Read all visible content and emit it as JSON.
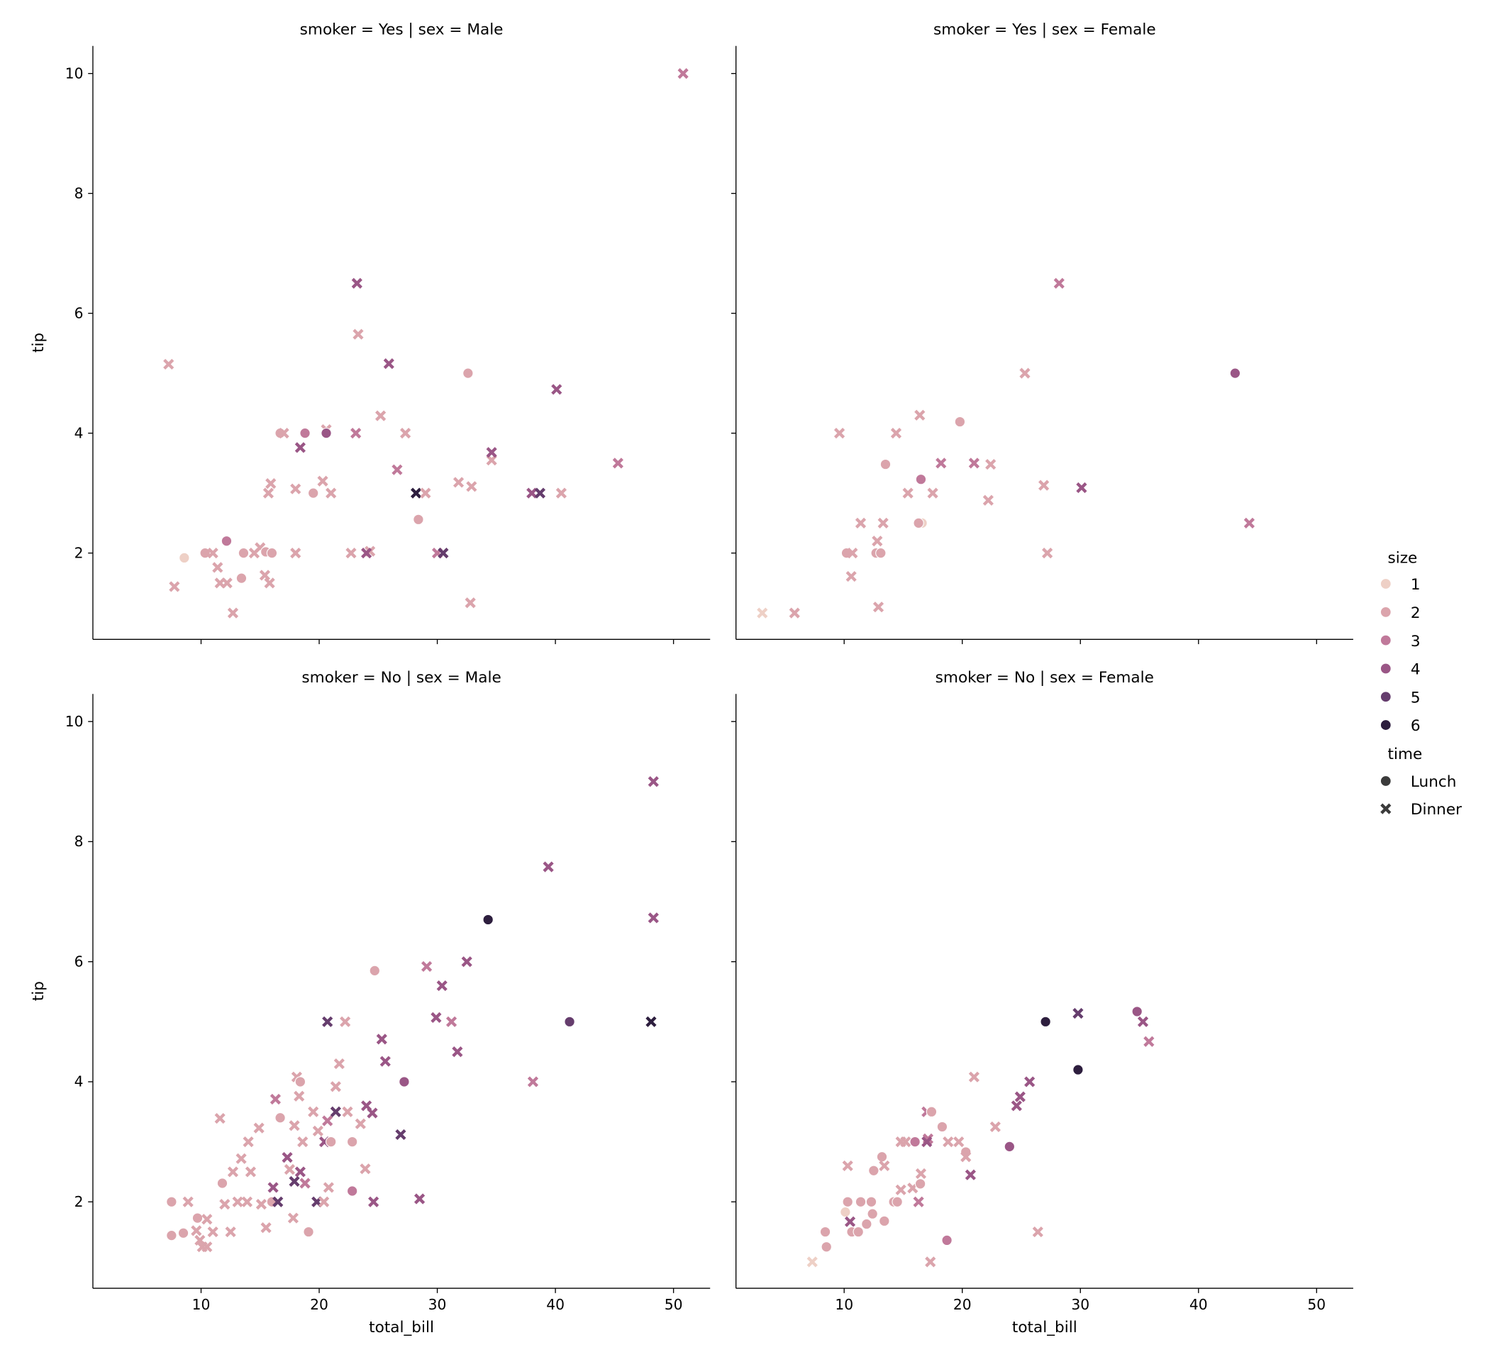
{
  "chart_data": [
    {
      "type": "scatter",
      "title": "smoker = Yes | sex = Male",
      "xlabel": "",
      "ylabel": "tip",
      "points": [
        [
          50.81,
          10.0,
          3,
          "D"
        ],
        [
          7.25,
          5.15,
          2,
          "D"
        ],
        [
          8.58,
          1.92,
          1,
          "L"
        ],
        [
          7.74,
          1.44,
          2,
          "D"
        ],
        [
          10.34,
          2.0,
          2,
          "L"
        ],
        [
          11.0,
          2.0,
          2,
          "D"
        ],
        [
          11.4,
          1.76,
          2,
          "D"
        ],
        [
          11.6,
          1.5,
          2,
          "D"
        ],
        [
          12.2,
          1.5,
          2,
          "D"
        ],
        [
          12.16,
          2.2,
          3,
          "L"
        ],
        [
          12.7,
          1.0,
          2,
          "D"
        ],
        [
          13.42,
          1.58,
          2,
          "L"
        ],
        [
          13.6,
          2.0,
          2,
          "L"
        ],
        [
          14.5,
          2.0,
          2,
          "D"
        ],
        [
          15.0,
          2.09,
          2,
          "D"
        ],
        [
          15.4,
          1.63,
          2,
          "D"
        ],
        [
          15.48,
          2.02,
          2,
          "L"
        ],
        [
          16.0,
          2.0,
          2,
          "L"
        ],
        [
          15.7,
          3.0,
          2,
          "D"
        ],
        [
          15.9,
          3.16,
          2,
          "D"
        ],
        [
          15.8,
          1.5,
          2,
          "D"
        ],
        [
          16.7,
          4.0,
          2,
          "L"
        ],
        [
          17.0,
          4.0,
          2,
          "D"
        ],
        [
          18.0,
          2.0,
          2,
          "D"
        ],
        [
          18.0,
          3.07,
          2,
          "D"
        ],
        [
          18.4,
          3.76,
          4,
          "D"
        ],
        [
          18.8,
          4.0,
          3,
          "L"
        ],
        [
          19.5,
          3.0,
          2,
          "L"
        ],
        [
          20.3,
          3.2,
          2,
          "D"
        ],
        [
          20.6,
          4.06,
          2,
          "D"
        ],
        [
          20.6,
          4.0,
          4,
          "L"
        ],
        [
          21.0,
          3.0,
          2,
          "D"
        ],
        [
          22.7,
          2.0,
          2,
          "D"
        ],
        [
          23.1,
          4.0,
          3,
          "D"
        ],
        [
          23.2,
          6.5,
          4,
          "D"
        ],
        [
          23.3,
          5.65,
          2,
          "D"
        ],
        [
          24.3,
          2.03,
          2,
          "D"
        ],
        [
          24.0,
          2.0,
          4,
          "D"
        ],
        [
          25.2,
          4.29,
          2,
          "D"
        ],
        [
          25.9,
          5.16,
          4,
          "D"
        ],
        [
          26.6,
          3.39,
          3,
          "D"
        ],
        [
          27.3,
          4.0,
          2,
          "D"
        ],
        [
          28.2,
          3.0,
          6,
          "D"
        ],
        [
          28.4,
          2.56,
          2,
          "L"
        ],
        [
          29.0,
          3.0,
          2,
          "D"
        ],
        [
          30.0,
          2.0,
          3,
          "D"
        ],
        [
          30.5,
          2.0,
          5,
          "D"
        ],
        [
          31.8,
          3.18,
          2,
          "D"
        ],
        [
          32.6,
          5.0,
          2,
          "L"
        ],
        [
          32.8,
          1.17,
          2,
          "D"
        ],
        [
          32.9,
          3.11,
          2,
          "D"
        ],
        [
          34.6,
          3.55,
          2,
          "D"
        ],
        [
          34.6,
          3.68,
          4,
          "D"
        ],
        [
          38.0,
          3.0,
          4,
          "D"
        ],
        [
          38.7,
          3.0,
          5,
          "D"
        ],
        [
          40.1,
          4.73,
          4,
          "D"
        ],
        [
          40.5,
          3.0,
          2,
          "D"
        ],
        [
          45.3,
          3.5,
          3,
          "D"
        ]
      ]
    },
    {
      "type": "scatter",
      "title": "smoker = Yes | sex = Female",
      "xlabel": "",
      "ylabel": "",
      "points": [
        [
          3.07,
          1.0,
          1,
          "D"
        ],
        [
          5.8,
          1.0,
          2,
          "D"
        ],
        [
          9.6,
          4.0,
          2,
          "D"
        ],
        [
          10.2,
          2.0,
          2,
          "L"
        ],
        [
          10.7,
          2.0,
          2,
          "D"
        ],
        [
          10.6,
          1.61,
          2,
          "D"
        ],
        [
          11.4,
          2.5,
          2,
          "D"
        ],
        [
          12.8,
          2.2,
          2,
          "D"
        ],
        [
          12.7,
          2.0,
          2,
          "L"
        ],
        [
          13.1,
          2.0,
          2,
          "L"
        ],
        [
          12.9,
          1.1,
          2,
          "D"
        ],
        [
          13.3,
          2.5,
          2,
          "D"
        ],
        [
          13.5,
          3.48,
          2,
          "L"
        ],
        [
          14.4,
          4.0,
          2,
          "D"
        ],
        [
          15.4,
          3.0,
          2,
          "D"
        ],
        [
          16.4,
          4.3,
          2,
          "D"
        ],
        [
          16.6,
          2.5,
          1,
          "L"
        ],
        [
          16.3,
          2.5,
          2,
          "L"
        ],
        [
          16.5,
          3.23,
          3,
          "L"
        ],
        [
          17.5,
          3.0,
          2,
          "D"
        ],
        [
          18.2,
          3.5,
          3,
          "D"
        ],
        [
          19.8,
          4.19,
          2,
          "L"
        ],
        [
          21.0,
          3.5,
          3,
          "D"
        ],
        [
          22.2,
          2.88,
          2,
          "D"
        ],
        [
          22.4,
          3.48,
          2,
          "D"
        ],
        [
          25.3,
          5.0,
          2,
          "D"
        ],
        [
          26.9,
          3.13,
          2,
          "D"
        ],
        [
          27.2,
          2.0,
          2,
          "D"
        ],
        [
          28.2,
          6.5,
          3,
          "D"
        ],
        [
          30.1,
          3.09,
          4,
          "D"
        ],
        [
          43.1,
          5.0,
          4,
          "L"
        ],
        [
          44.3,
          2.5,
          3,
          "D"
        ]
      ]
    },
    {
      "type": "scatter",
      "title": "smoker = No | sex = Male",
      "xlabel": "total_bill",
      "ylabel": "tip",
      "points": [
        [
          7.5,
          2.0,
          2,
          "L"
        ],
        [
          7.5,
          1.44,
          2,
          "L"
        ],
        [
          8.5,
          1.48,
          2,
          "L"
        ],
        [
          8.9,
          2.0,
          2,
          "D"
        ],
        [
          9.7,
          1.73,
          2,
          "L"
        ],
        [
          9.6,
          1.52,
          2,
          "D"
        ],
        [
          9.9,
          1.36,
          2,
          "D"
        ],
        [
          10.1,
          1.25,
          2,
          "D"
        ],
        [
          10.5,
          1.25,
          2,
          "D"
        ],
        [
          10.5,
          1.71,
          2,
          "D"
        ],
        [
          11.0,
          1.5,
          2,
          "D"
        ],
        [
          11.6,
          3.39,
          2,
          "D"
        ],
        [
          11.8,
          2.31,
          2,
          "L"
        ],
        [
          12.0,
          1.96,
          2,
          "D"
        ],
        [
          12.5,
          1.5,
          2,
          "D"
        ],
        [
          12.7,
          2.5,
          2,
          "D"
        ],
        [
          13.1,
          2.0,
          2,
          "D"
        ],
        [
          13.4,
          2.72,
          2,
          "D"
        ],
        [
          13.9,
          2.0,
          2,
          "D"
        ],
        [
          14.0,
          3.0,
          2,
          "D"
        ],
        [
          14.2,
          2.5,
          2,
          "D"
        ],
        [
          14.9,
          3.23,
          2,
          "D"
        ],
        [
          15.1,
          1.96,
          2,
          "D"
        ],
        [
          15.5,
          1.57,
          2,
          "D"
        ],
        [
          16.1,
          2.24,
          4,
          "D"
        ],
        [
          16.0,
          2.0,
          2,
          "L"
        ],
        [
          16.3,
          3.71,
          3,
          "D"
        ],
        [
          16.5,
          2.0,
          5,
          "D"
        ],
        [
          16.7,
          3.4,
          2,
          "L"
        ],
        [
          17.3,
          2.74,
          4,
          "D"
        ],
        [
          17.5,
          2.54,
          2,
          "D"
        ],
        [
          17.8,
          1.73,
          2,
          "D"
        ],
        [
          17.9,
          3.27,
          2,
          "D"
        ],
        [
          17.9,
          2.34,
          5,
          "D"
        ],
        [
          18.1,
          4.08,
          2,
          "D"
        ],
        [
          18.3,
          3.76,
          2,
          "D"
        ],
        [
          18.4,
          4.0,
          2,
          "L"
        ],
        [
          18.4,
          2.5,
          4,
          "D"
        ],
        [
          18.6,
          3.0,
          2,
          "D"
        ],
        [
          18.8,
          2.31,
          3,
          "D"
        ],
        [
          19.1,
          1.5,
          2,
          "L"
        ],
        [
          19.5,
          3.5,
          2,
          "D"
        ],
        [
          19.8,
          2.0,
          5,
          "D"
        ],
        [
          19.9,
          3.18,
          2,
          "D"
        ],
        [
          20.4,
          2.0,
          2,
          "D"
        ],
        [
          20.45,
          3.0,
          4,
          "D"
        ],
        [
          20.7,
          5.0,
          5,
          "D"
        ],
        [
          20.7,
          3.35,
          3,
          "D"
        ],
        [
          20.8,
          2.24,
          2,
          "D"
        ],
        [
          21.0,
          3.0,
          2,
          "L"
        ],
        [
          21.4,
          3.5,
          5,
          "D"
        ],
        [
          21.4,
          3.92,
          2,
          "D"
        ],
        [
          21.7,
          4.3,
          2,
          "D"
        ],
        [
          22.2,
          5.0,
          2,
          "D"
        ],
        [
          22.4,
          3.5,
          2,
          "D"
        ],
        [
          22.8,
          3.0,
          2,
          "L"
        ],
        [
          22.8,
          2.18,
          3,
          "L"
        ],
        [
          23.5,
          3.3,
          2,
          "D"
        ],
        [
          23.9,
          2.55,
          2,
          "D"
        ],
        [
          24.0,
          3.6,
          4,
          "D"
        ],
        [
          24.5,
          3.48,
          4,
          "D"
        ],
        [
          24.6,
          2.0,
          4,
          "D"
        ],
        [
          24.7,
          5.85,
          2,
          "L"
        ],
        [
          25.3,
          4.71,
          4,
          "D"
        ],
        [
          25.6,
          4.34,
          4,
          "D"
        ],
        [
          26.9,
          3.12,
          5,
          "D"
        ],
        [
          27.2,
          4.0,
          4,
          "L"
        ],
        [
          28.5,
          2.05,
          4,
          "D"
        ],
        [
          29.1,
          5.92,
          3,
          "D"
        ],
        [
          29.9,
          5.07,
          4,
          "D"
        ],
        [
          30.4,
          5.6,
          4,
          "D"
        ],
        [
          31.2,
          5.0,
          3,
          "D"
        ],
        [
          31.7,
          4.5,
          4,
          "D"
        ],
        [
          32.5,
          6.0,
          4,
          "D"
        ],
        [
          34.3,
          6.7,
          6,
          "L"
        ],
        [
          38.1,
          4.0,
          3,
          "D"
        ],
        [
          39.4,
          7.58,
          4,
          "D"
        ],
        [
          41.2,
          5.0,
          5,
          "L"
        ],
        [
          48.1,
          5.0,
          6,
          "D"
        ],
        [
          48.3,
          9.0,
          4,
          "D"
        ],
        [
          48.3,
          6.73,
          4,
          "D"
        ]
      ]
    },
    {
      "type": "scatter",
      "title": "smoker = No | sex = Female",
      "xlabel": "total_bill",
      "ylabel": "",
      "points": [
        [
          7.3,
          1.0,
          1,
          "D"
        ],
        [
          8.4,
          1.5,
          2,
          "L"
        ],
        [
          8.5,
          1.25,
          2,
          "L"
        ],
        [
          10.1,
          1.83,
          1,
          "L"
        ],
        [
          10.3,
          2.6,
          2,
          "D"
        ],
        [
          10.3,
          2.0,
          2,
          "L"
        ],
        [
          10.5,
          1.67,
          4,
          "D"
        ],
        [
          10.65,
          1.5,
          2,
          "L"
        ],
        [
          11.2,
          1.5,
          2,
          "L"
        ],
        [
          11.4,
          2.0,
          2,
          "L"
        ],
        [
          11.9,
          1.63,
          2,
          "L"
        ],
        [
          12.3,
          2.0,
          2,
          "L"
        ],
        [
          12.4,
          1.8,
          2,
          "L"
        ],
        [
          12.5,
          2.52,
          2,
          "L"
        ],
        [
          13.2,
          2.75,
          2,
          "L"
        ],
        [
          13.4,
          1.68,
          2,
          "L"
        ],
        [
          13.4,
          2.6,
          2,
          "D"
        ],
        [
          14.2,
          2.0,
          2,
          "L"
        ],
        [
          14.5,
          2.0,
          2,
          "L"
        ],
        [
          14.8,
          2.2,
          2,
          "D"
        ],
        [
          14.8,
          3.0,
          2,
          "D"
        ],
        [
          15.2,
          3.0,
          2,
          "D"
        ],
        [
          15.8,
          2.23,
          2,
          "D"
        ],
        [
          16.0,
          3.0,
          3,
          "L"
        ],
        [
          16.3,
          2.0,
          3,
          "D"
        ],
        [
          16.5,
          2.47,
          2,
          "D"
        ],
        [
          16.45,
          2.3,
          2,
          "L"
        ],
        [
          17.0,
          3.5,
          3,
          "D"
        ],
        [
          17.1,
          3.05,
          3,
          "D"
        ],
        [
          17.0,
          3.0,
          4,
          "D"
        ],
        [
          17.3,
          1.0,
          2,
          "D"
        ],
        [
          17.4,
          3.5,
          2,
          "L"
        ],
        [
          18.3,
          3.25,
          2,
          "L"
        ],
        [
          18.7,
          1.36,
          3,
          "L"
        ],
        [
          18.8,
          3.0,
          2,
          "D"
        ],
        [
          19.7,
          3.0,
          2,
          "D"
        ],
        [
          20.3,
          2.83,
          2,
          "L"
        ],
        [
          20.3,
          2.75,
          2,
          "D"
        ],
        [
          20.7,
          2.45,
          4,
          "D"
        ],
        [
          21.0,
          4.08,
          2,
          "D"
        ],
        [
          22.8,
          3.25,
          2,
          "D"
        ],
        [
          24.0,
          2.92,
          4,
          "L"
        ],
        [
          24.6,
          3.6,
          4,
          "D"
        ],
        [
          24.9,
          3.75,
          4,
          "D"
        ],
        [
          25.7,
          4.0,
          4,
          "D"
        ],
        [
          26.4,
          1.5,
          2,
          "D"
        ],
        [
          27.05,
          5.0,
          6,
          "L"
        ],
        [
          29.8,
          5.14,
          5,
          "D"
        ],
        [
          29.8,
          4.2,
          6,
          "L"
        ],
        [
          34.8,
          5.17,
          4,
          "L"
        ],
        [
          35.3,
          5.0,
          4,
          "D"
        ],
        [
          35.8,
          4.67,
          3,
          "D"
        ]
      ]
    }
  ],
  "axes": {
    "xlim": [
      0.84,
      53.1
    ],
    "ylim": [
      0.56,
      10.46
    ],
    "xticks": [
      10,
      20,
      30,
      40,
      50
    ],
    "yticks": [
      2,
      4,
      6,
      8,
      10
    ],
    "grid": false,
    "sharex": true,
    "sharey": true
  },
  "legend": {
    "placement": "right",
    "hue_title": "size",
    "hue_levels": [
      "1",
      "2",
      "3",
      "4",
      "5",
      "6"
    ],
    "hue_colors": [
      "#eed0c6",
      "#dba4ac",
      "#c0799a",
      "#9a5686",
      "#653d6d",
      "#2d1e3e"
    ],
    "style_title": "time",
    "style_levels": [
      "Lunch",
      "Dinner"
    ],
    "style_markers": [
      "circle",
      "x"
    ]
  }
}
